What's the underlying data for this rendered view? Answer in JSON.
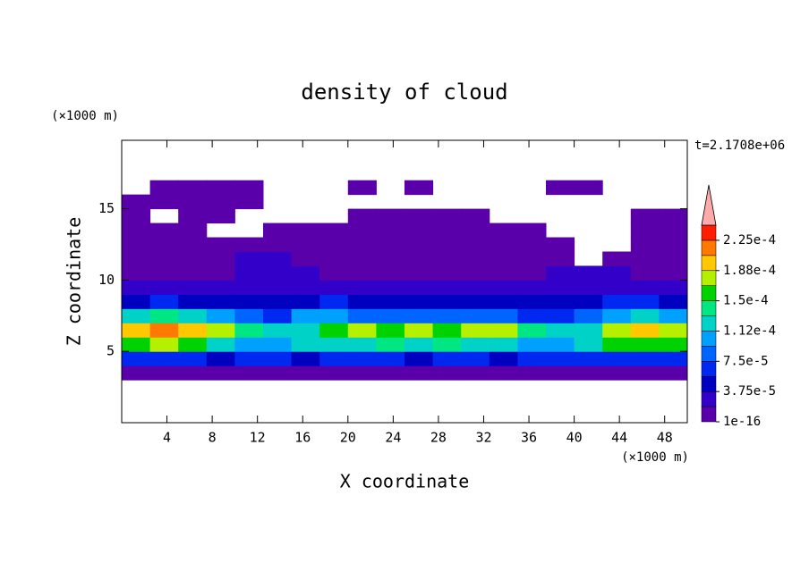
{
  "chart_data": {
    "type": "heatmap",
    "title": "density of cloud",
    "x_label": "X coordinate",
    "y_label": "Z coordinate",
    "x_unit": "(×1000 m)",
    "y_unit": "(×1000 m)",
    "time_label": "t=2.1708e+06",
    "xlim": [
      0,
      50
    ],
    "ylim": [
      0,
      19.8
    ],
    "xticks": [
      4,
      8,
      12,
      16,
      20,
      24,
      28,
      32,
      36,
      40,
      44,
      48
    ],
    "yticks": [
      5,
      10,
      15
    ],
    "x": [
      0,
      2.5,
      5,
      7.5,
      10,
      12.5,
      15,
      17.5,
      20,
      22.5,
      25,
      27.5,
      30,
      32.5,
      35,
      37.5,
      40,
      42.5,
      45,
      47.5,
      50
    ],
    "y": [
      3,
      4,
      5,
      6,
      7,
      8,
      9,
      10,
      11,
      12,
      13,
      14,
      15,
      16,
      17
    ],
    "z": [
      [
        5e-06,
        5e-06,
        5e-06,
        5e-06,
        5e-06,
        5e-06,
        5e-06,
        5e-06,
        5e-06,
        5e-06,
        5e-06,
        5e-06,
        5e-06,
        5e-06,
        5e-06,
        5e-06,
        5e-06,
        5e-06,
        5e-06,
        5e-06
      ],
      [
        6e-05,
        6.5e-05,
        6e-05,
        5.5e-05,
        6e-05,
        6e-05,
        5e-05,
        6.5e-05,
        6e-05,
        6e-05,
        5.5e-05,
        6e-05,
        6e-05,
        5.5e-05,
        7e-05,
        6e-05,
        6e-05,
        6e-05,
        6.5e-05,
        7e-05
      ],
      [
        0.00016,
        0.00017,
        0.00015,
        0.00012,
        0.00011,
        0.0001,
        0.00012,
        0.00013,
        0.00013,
        0.00014,
        0.00013,
        0.00014,
        0.00013,
        0.00012,
        0.00011,
        0.0001,
        0.00013,
        0.00015,
        0.00016,
        0.00015
      ],
      [
        0.0002,
        0.00021,
        0.00019,
        0.00017,
        0.00014,
        0.00012,
        0.00013,
        0.00016,
        0.00017,
        0.00016,
        0.00017,
        0.00016,
        0.00018,
        0.00017,
        0.00014,
        0.00012,
        0.00013,
        0.00018,
        0.00019,
        0.00018
      ],
      [
        0.00013,
        0.00014,
        0.00012,
        0.0001,
        8e-05,
        7e-05,
        0.0001,
        0.00011,
        9e-05,
        8e-05,
        9e-05,
        8e-05,
        9e-05,
        8e-05,
        7e-05,
        6e-05,
        8e-05,
        0.00011,
        0.00012,
        0.00011
      ],
      [
        5e-05,
        6e-05,
        5e-05,
        4.5e-05,
        4e-05,
        4e-05,
        5e-05,
        6e-05,
        5e-05,
        5e-05,
        4.5e-05,
        5e-05,
        4.5e-05,
        5e-05,
        5e-05,
        4e-05,
        5e-05,
        6e-05,
        6e-05,
        5.5e-05
      ],
      [
        3e-05,
        3e-05,
        3e-05,
        2.5e-05,
        2.5e-05,
        3e-05,
        3e-05,
        3e-05,
        2.5e-05,
        3e-05,
        3e-05,
        2.5e-05,
        2.5e-05,
        3e-05,
        2.5e-05,
        3e-05,
        3.5e-05,
        3.5e-05,
        3e-05,
        3e-05
      ],
      [
        1e-05,
        1.5e-05,
        1e-05,
        1.5e-05,
        2e-05,
        2.2e-05,
        2e-05,
        1.5e-05,
        1.5e-05,
        1.5e-05,
        1.2e-05,
        1.5e-05,
        1.5e-05,
        1.5e-05,
        1.5e-05,
        2e-05,
        2e-05,
        2e-05,
        1.5e-05,
        1.5e-05
      ],
      [
        5e-06,
        5e-06,
        5e-06,
        1e-05,
        2e-05,
        2e-05,
        1.5e-05,
        1e-05,
        1e-05,
        5e-06,
        1e-05,
        1e-05,
        5e-06,
        5e-06,
        1e-05,
        1e-05,
        null,
        5e-06,
        5e-06,
        5e-06
      ],
      [
        5e-06,
        5e-06,
        5e-06,
        5e-06,
        1e-05,
        1e-05,
        5e-06,
        5e-06,
        5e-06,
        5e-06,
        5e-06,
        5e-06,
        5e-06,
        5e-06,
        5e-06,
        5e-06,
        null,
        null,
        5e-06,
        5e-06
      ],
      [
        5e-06,
        5e-06,
        5e-06,
        null,
        null,
        5e-06,
        5e-06,
        5e-06,
        5e-06,
        5e-06,
        5e-06,
        5e-06,
        5e-06,
        5e-06,
        5e-06,
        null,
        null,
        null,
        5e-06,
        5e-06
      ],
      [
        5e-06,
        null,
        5e-06,
        5e-06,
        null,
        null,
        null,
        null,
        5e-06,
        5e-06,
        5e-06,
        5e-06,
        5e-06,
        null,
        null,
        null,
        null,
        null,
        5e-06,
        5e-06
      ],
      [
        5e-06,
        5e-06,
        5e-06,
        5e-06,
        5e-06,
        null,
        null,
        null,
        null,
        null,
        null,
        null,
        null,
        null,
        null,
        null,
        null,
        null,
        null,
        null
      ],
      [
        null,
        5e-06,
        5e-06,
        5e-06,
        5e-06,
        null,
        null,
        null,
        5e-06,
        null,
        5e-06,
        null,
        null,
        null,
        null,
        5e-06,
        5e-06,
        null,
        null,
        null
      ]
    ],
    "colorbar": {
      "boundaries": [
        1e-16,
        1.875e-05,
        3.75e-05,
        5.625e-05,
        7.5e-05,
        9.375e-05,
        0.0001125,
        0.00013125,
        0.00015,
        0.00016875,
        0.0001875,
        0.00020625,
        0.000225,
        0.00024375
      ],
      "colors": [
        "#5a00aa",
        "#3200c8",
        "#0000c0",
        "#0028f0",
        "#0064ff",
        "#00a0ff",
        "#00d2c8",
        "#00e682",
        "#00d200",
        "#b4f000",
        "#ffc800",
        "#ff7800",
        "#ff1e00"
      ],
      "extend_color": "#ffaaaa",
      "ticks": [
        1e-16,
        {
          "value": 3.75e-05,
          "label": "3.75e-5"
        },
        {
          "value": 7.5e-05,
          "label": "7.5e-5"
        },
        {
          "value": 0.0001125,
          "label": "1.12e-4"
        },
        {
          "value": 0.00015,
          "label": "1.5e-4"
        },
        {
          "value": 0.0001875,
          "label": "1.88e-4"
        },
        {
          "value": 0.000225,
          "label": "2.25e-4"
        }
      ]
    }
  }
}
